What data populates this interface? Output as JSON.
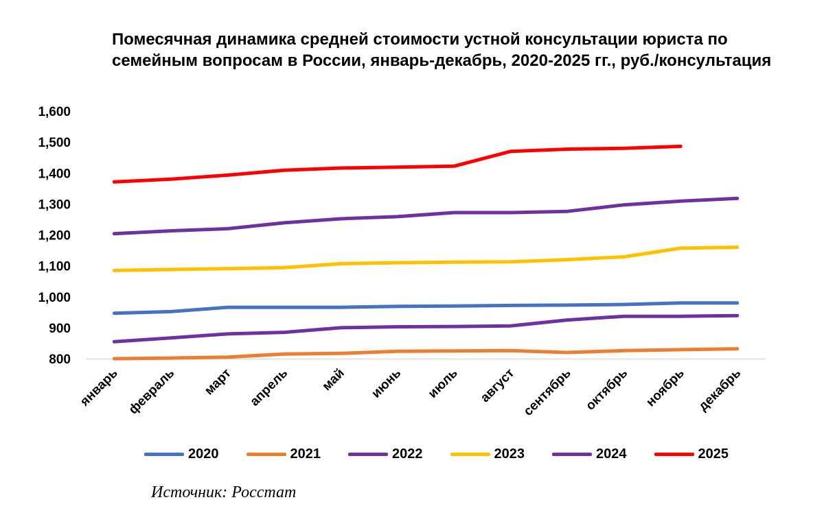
{
  "chart_data": {
    "type": "line",
    "title": "Помесячная динамика средней стоимости устной консультации юриста по семейным вопросам в России, январь-декабрь, 2020-2025 гг., руб./консультация",
    "xlabel": "",
    "ylabel": "",
    "ylim": [
      800,
      1600
    ],
    "yticks": [
      800,
      900,
      1000,
      1100,
      1200,
      1300,
      1400,
      1500,
      1600
    ],
    "ytick_labels": [
      "800",
      "900",
      "1,000",
      "1,100",
      "1,200",
      "1,300",
      "1,400",
      "1,500",
      "1,600"
    ],
    "grid": false,
    "legend": "bottom",
    "categories": [
      "январь",
      "февраль",
      "март",
      "апрель",
      "май",
      "июнь",
      "июль",
      "август",
      "сентябрь",
      "октябрь",
      "ноябрь",
      "декабрь"
    ],
    "series": [
      {
        "name": "2020",
        "color": "#4472C4",
        "values": [
          947,
          952,
          966,
          966,
          966,
          969,
          970,
          972,
          973,
          975,
          980,
          980
        ]
      },
      {
        "name": "2021",
        "color": "#ED7D31",
        "values": [
          800,
          802,
          805,
          815,
          817,
          824,
          825,
          826,
          820,
          826,
          829,
          832
        ]
      },
      {
        "name": "2022",
        "color": "#7030A0",
        "values": [
          855,
          867,
          880,
          885,
          900,
          903,
          904,
          906,
          925,
          937,
          937,
          939
        ]
      },
      {
        "name": "2023",
        "color": "#FFC000",
        "values": [
          1085,
          1088,
          1091,
          1094,
          1107,
          1110,
          1112,
          1113,
          1120,
          1129,
          1157,
          1160
        ]
      },
      {
        "name": "2024",
        "color": "#7030A0",
        "values": [
          1204,
          1213,
          1220,
          1239,
          1252,
          1259,
          1272,
          1272,
          1276,
          1297,
          1309,
          1318
        ]
      },
      {
        "name": "2025",
        "color": "#FF0000",
        "values": [
          1371,
          1380,
          1393,
          1409,
          1416,
          1419,
          1422,
          1470,
          1477,
          1480,
          1486,
          null
        ]
      }
    ]
  },
  "source": "Источник: Росстат"
}
